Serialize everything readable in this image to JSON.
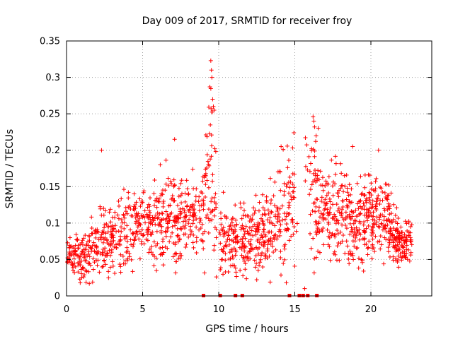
{
  "chart_data": {
    "type": "scatter",
    "title": "Day 009 of 2017, SRMTID for receiver froy",
    "xlabel": "GPS time / hours",
    "ylabel": "SRMTID / TECUs",
    "xlim": [
      0,
      24
    ],
    "ylim": [
      0,
      0.35
    ],
    "x_ticks": [
      0,
      5,
      10,
      15,
      20
    ],
    "x_tick_labels": [
      "0",
      "5",
      "10",
      "15",
      "20"
    ],
    "y_ticks": [
      0,
      0.05,
      0.1,
      0.15,
      0.2,
      0.25,
      0.3,
      0.35
    ],
    "y_tick_labels": [
      "0",
      "0.05",
      "0.1",
      "0.15",
      "0.2",
      "0.25",
      "0.3",
      "0.35"
    ],
    "grid": true,
    "marker": "plus",
    "color": "#ff0000",
    "series": [
      {
        "name": "SRMTID",
        "marker": "plus",
        "envelope_x": [
          0,
          1,
          2,
          3,
          4,
          5,
          6,
          7,
          8,
          9,
          9.5,
          10,
          11,
          12,
          13,
          14,
          15,
          16,
          17,
          18,
          19,
          20,
          21,
          22,
          22.7
        ],
        "envelope_median": [
          0.055,
          0.05,
          0.075,
          0.075,
          0.085,
          0.1,
          0.1,
          0.105,
          0.115,
          0.12,
          0.18,
          0.08,
          0.075,
          0.08,
          0.09,
          0.1,
          0.13,
          0.15,
          0.11,
          0.12,
          0.1,
          0.115,
          0.11,
          0.065,
          0.085
        ],
        "envelope_spread": [
          0.01,
          0.015,
          0.022,
          0.025,
          0.025,
          0.025,
          0.027,
          0.03,
          0.03,
          0.035,
          0.05,
          0.025,
          0.02,
          0.025,
          0.025,
          0.035,
          0.04,
          0.045,
          0.03,
          0.035,
          0.03,
          0.03,
          0.03,
          0.015,
          0.015
        ],
        "highlights": [
          {
            "x": 9.48,
            "y": 0.323
          },
          {
            "x": 9.52,
            "y": 0.31
          },
          {
            "x": 9.55,
            "y": 0.3
          },
          {
            "x": 9.42,
            "y": 0.287
          },
          {
            "x": 9.6,
            "y": 0.27
          },
          {
            "x": 9.65,
            "y": 0.26
          },
          {
            "x": 9.5,
            "y": 0.257
          },
          {
            "x": 9.7,
            "y": 0.255
          },
          {
            "x": 2.3,
            "y": 0.2
          },
          {
            "x": 7.1,
            "y": 0.215
          },
          {
            "x": 16.2,
            "y": 0.246
          },
          {
            "x": 16.25,
            "y": 0.24
          },
          {
            "x": 16.3,
            "y": 0.232
          },
          {
            "x": 16.4,
            "y": 0.22
          },
          {
            "x": 18.8,
            "y": 0.205
          },
          {
            "x": 20.5,
            "y": 0.2
          },
          {
            "x": 14.1,
            "y": 0.205
          },
          {
            "x": 15.65,
            "y": 0.01
          },
          {
            "x": 0.9,
            "y": 0.018
          }
        ]
      },
      {
        "name": "zero-values",
        "marker": "square",
        "x": [
          9.0,
          10.1,
          11.1,
          11.55,
          14.65,
          15.3,
          15.55,
          15.85,
          16.45
        ],
        "y": [
          0,
          0,
          0,
          0,
          0,
          0,
          0,
          0,
          0
        ]
      }
    ]
  }
}
